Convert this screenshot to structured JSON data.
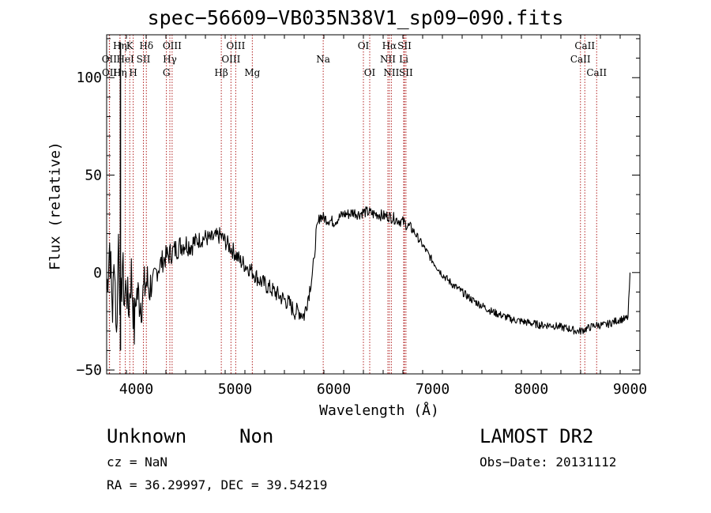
{
  "chart_data": {
    "type": "line",
    "title": "spec−56609−VB035N38V1_sp09−090.fits",
    "xlabel": "Wavelength (Å)",
    "ylabel": "Flux (relative)",
    "xlim": [
      3700,
      9100
    ],
    "ylim": [
      -52,
      122
    ],
    "xticks": [
      4000,
      5000,
      6000,
      7000,
      8000,
      9000
    ],
    "yticks": [
      -50,
      0,
      50,
      100
    ],
    "series": [
      {
        "x": [
          3700,
          3730,
          3760,
          3780,
          3800,
          3820,
          3840,
          3860,
          3880,
          3900,
          3920,
          3950,
          3980,
          4000,
          4050,
          4100,
          4150,
          4200,
          4250,
          4300,
          4350,
          4400,
          4450,
          4500,
          4550,
          4600,
          4650,
          4700,
          4750,
          4800,
          4850,
          4900,
          4950,
          5000,
          5050,
          5100,
          5150,
          5200,
          5250,
          5300,
          5350,
          5400,
          5450,
          5500,
          5550,
          5600,
          5650,
          5700,
          5750,
          5800,
          5820,
          5850,
          5860,
          5900,
          5950,
          6000,
          6050,
          6100,
          6150,
          6200,
          6250,
          6300,
          6350,
          6400,
          6450,
          6500,
          6550,
          6600,
          6650,
          6700,
          6750,
          6800,
          6850,
          6900,
          6950,
          7000,
          7100,
          7200,
          7300,
          7400,
          7500,
          7600,
          7700,
          7800,
          7900,
          8000,
          8100,
          8200,
          8300,
          8400,
          8450,
          8500,
          8550,
          8600,
          8650,
          8700,
          8750,
          8800,
          8850,
          8900,
          8950,
          8980,
          9000
        ],
        "y": [
          -10,
          15,
          -20,
          10,
          -35,
          20,
          -25,
          5,
          -15,
          -5,
          -20,
          0,
          -30,
          -10,
          -15,
          -5,
          -8,
          0,
          5,
          8,
          10,
          12,
          14,
          15,
          14,
          16,
          17,
          18,
          17,
          18,
          19,
          16,
          13,
          10,
          6,
          4,
          2,
          -1,
          -4,
          -6,
          -8,
          -10,
          -12,
          -14,
          -16,
          -20,
          -20,
          -22,
          -10,
          5,
          20,
          27,
          29,
          28,
          27,
          26,
          28,
          30,
          30,
          31,
          30,
          31,
          31,
          30,
          30,
          29,
          29,
          28,
          27,
          26,
          24,
          22,
          18,
          14,
          10,
          6,
          -1,
          -6,
          -10,
          -14,
          -17,
          -20,
          -22,
          -24,
          -25,
          -26,
          -27,
          -27,
          -28,
          -29,
          -30,
          -30,
          -29,
          -28,
          -27,
          -27,
          -27,
          -26,
          -25,
          -24,
          -24,
          -23,
          0
        ]
      }
    ],
    "lines": [
      {
        "label": "Hη",
        "x": 3835,
        "row": 0
      },
      {
        "label": "K",
        "x": 3934,
        "row": 0
      },
      {
        "label": "Hδ",
        "x": 4102,
        "row": 0
      },
      {
        "label": "OIII",
        "x": 4363,
        "row": 0
      },
      {
        "label": "OIII",
        "x": 5007,
        "row": 0
      },
      {
        "label": "OI",
        "x": 6300,
        "row": 0
      },
      {
        "label": "Hα",
        "x": 6563,
        "row": 0
      },
      {
        "label": "SII",
        "x": 6716,
        "row": 0
      },
      {
        "label": "CaII",
        "x": 8542,
        "row": 0
      },
      {
        "label": "OII",
        "x": 3727,
        "row": 1
      },
      {
        "label": "HeI",
        "x": 3889,
        "row": 1
      },
      {
        "label": "SII",
        "x": 4072,
        "row": 1
      },
      {
        "label": "Hγ",
        "x": 4340,
        "row": 1
      },
      {
        "label": "OIII",
        "x": 4959,
        "row": 1
      },
      {
        "label": "Na",
        "x": 5893,
        "row": 1
      },
      {
        "label": "NII",
        "x": 6548,
        "row": 1
      },
      {
        "label": "Li",
        "x": 6708,
        "row": 1
      },
      {
        "label": "CaII",
        "x": 8498,
        "row": 1
      },
      {
        "label": "OII",
        "x": 3729,
        "row": 2
      },
      {
        "label": "Hη",
        "x": 3835,
        "row": 2
      },
      {
        "label": "H",
        "x": 3969,
        "row": 2
      },
      {
        "label": "G",
        "x": 4305,
        "row": 2
      },
      {
        "label": "Hβ",
        "x": 4861,
        "row": 2
      },
      {
        "label": "Mg",
        "x": 5175,
        "row": 2
      },
      {
        "label": "OI",
        "x": 6364,
        "row": 2
      },
      {
        "label": "NII",
        "x": 6583,
        "row": 2
      },
      {
        "label": "SII",
        "x": 6731,
        "row": 2
      },
      {
        "label": "CaII",
        "x": 8662,
        "row": 2
      }
    ]
  },
  "info": {
    "class": "Unknown",
    "subclass": "Non",
    "survey": "LAMOST DR2",
    "cz": "cz = NaN",
    "obsdate": "Obs−Date: 20131112",
    "radec": "RA =  36.29997, DEC =  39.54219"
  }
}
